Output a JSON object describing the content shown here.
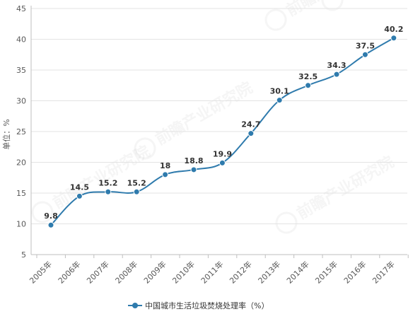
{
  "chart_data": {
    "type": "line",
    "categories": [
      "2005年",
      "2006年",
      "2007年",
      "2008年",
      "2009年",
      "2010年",
      "2011年",
      "2012年",
      "2013年",
      "2014年",
      "2015年",
      "2016年",
      "2017年"
    ],
    "series": [
      {
        "name": "中国城市生活垃圾焚烧处理率（%）",
        "values": [
          9.8,
          14.5,
          15.2,
          15.2,
          18,
          18.8,
          19.9,
          24.7,
          30.1,
          32.5,
          34.3,
          37.5,
          40.2
        ],
        "labels": [
          "9.8",
          "14.5",
          "15.2",
          "15.2",
          "18",
          "18.8",
          "19.9",
          "24.7",
          "30.1",
          "32.5",
          "34.3",
          "37.5",
          "40.2"
        ]
      }
    ],
    "ylabel": "单位：%",
    "ylim": [
      5,
      45
    ],
    "yticks": [
      5,
      10,
      15,
      20,
      25,
      30,
      35,
      40,
      45
    ],
    "grid": true,
    "legend_position": "bottom",
    "colors": {
      "line": "#2f7bad",
      "marker": "#2f7bad",
      "grid": "#e3e3e3",
      "axis": "#bfbfbf",
      "label": "#333333",
      "tick": "#595959"
    }
  },
  "watermark": {
    "brand": "前瞻产业研究院"
  }
}
